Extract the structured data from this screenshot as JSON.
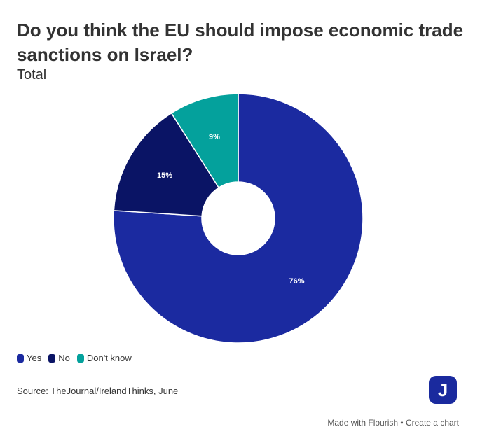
{
  "header": {
    "title": "Do you think the EU should impose economic trade sanctions on Israel?",
    "subtitle": "Total"
  },
  "chart_data": {
    "type": "pie",
    "donut": true,
    "categories": [
      "Yes",
      "No",
      "Don't know"
    ],
    "values": [
      76,
      15,
      9
    ],
    "labels": [
      "76%",
      "15%",
      "9%"
    ],
    "colors": [
      "#1b2aa0",
      "#0a1465",
      "#04a19c"
    ],
    "legend_position": "bottom-left"
  },
  "legend": {
    "items": [
      {
        "label": "Yes",
        "color": "#1b2aa0"
      },
      {
        "label": "No",
        "color": "#0a1465"
      },
      {
        "label": "Don't know",
        "color": "#04a19c"
      }
    ]
  },
  "source": "Source: TheJournal/IrelandThinks, June",
  "logo": {
    "letter": "J",
    "icon": "thejournal-logo-icon"
  },
  "footer": {
    "made_with": "Made with Flourish",
    "separator": " • ",
    "create": "Create a chart"
  }
}
